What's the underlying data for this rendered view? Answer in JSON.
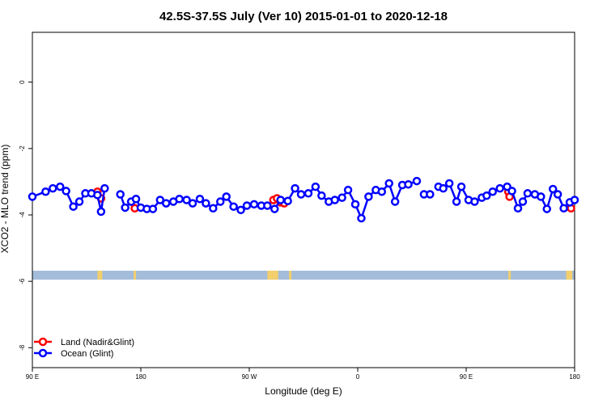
{
  "chart_data": {
    "type": "line",
    "title": "42.5S-37.5S July (Ver 10)   2015-01-01 to 2020-12-18",
    "xlabel": "Longitude (deg E)",
    "ylabel": "XCO2 - MLO trend (ppm)",
    "x_ticks": [
      {
        "value": 90,
        "label": "90 E"
      },
      {
        "value": 180,
        "label": "180"
      },
      {
        "value": 270,
        "label": "90 W"
      },
      {
        "value": 360,
        "label": "0"
      },
      {
        "value": 450,
        "label": "90 E"
      },
      {
        "value": 540,
        "label": "180"
      }
    ],
    "y_ticks": [
      0,
      -2,
      -4,
      -6,
      -8
    ],
    "xlim": [
      90,
      540
    ],
    "ylim": [
      -8.6,
      1.5
    ],
    "legend_position": "bottom-left",
    "land_mask": {
      "y_top": -5.68,
      "y_bottom": -5.95,
      "ocean_color": "#a3bcd9",
      "land_color": "#f2cf6c",
      "land_spans": [
        [
          144,
          148
        ],
        [
          174,
          176
        ],
        [
          285,
          294
        ],
        [
          303,
          305
        ],
        [
          485,
          487
        ],
        [
          533,
          538
        ]
      ]
    },
    "series": [
      {
        "name": "Land (Nadir&Glint)",
        "color": "#ff0000",
        "x": [
          144,
          147,
          175,
          290,
          293,
          296,
          299,
          485,
          486,
          537
        ],
        "y": [
          -3.3,
          -3.5,
          -3.8,
          -3.55,
          -3.5,
          -3.62,
          -3.65,
          -3.3,
          -3.45,
          -3.8
        ]
      },
      {
        "name": "Ocean (Glint)",
        "color": "#0000ff",
        "segments": [
          {
            "x": [
              90,
              101,
              107,
              113,
              118,
              124,
              129,
              134,
              139,
              144,
              147,
              150
            ],
            "y": [
              -3.45,
              -3.3,
              -3.2,
              -3.15,
              -3.28,
              -3.75,
              -3.6,
              -3.35,
              -3.35,
              -3.4,
              -3.9,
              -3.2
            ]
          },
          {
            "x": [
              163,
              167,
              172,
              176,
              180,
              185,
              190,
              196,
              201,
              207,
              212,
              218,
              223,
              229,
              234,
              240,
              246,
              251,
              257,
              263,
              268,
              274,
              280,
              285,
              291,
              296,
              302,
              308,
              313,
              319,
              325,
              330,
              336,
              341,
              347,
              352,
              358,
              363,
              369,
              375,
              380,
              386,
              391,
              397,
              402,
              409
            ],
            "y": [
              -3.38,
              -3.78,
              -3.6,
              -3.52,
              -3.78,
              -3.82,
              -3.82,
              -3.55,
              -3.65,
              -3.6,
              -3.52,
              -3.55,
              -3.65,
              -3.52,
              -3.65,
              -3.8,
              -3.6,
              -3.45,
              -3.75,
              -3.85,
              -3.72,
              -3.68,
              -3.72,
              -3.72,
              -3.82,
              -3.55,
              -3.58,
              -3.2,
              -3.38,
              -3.35,
              -3.15,
              -3.42,
              -3.6,
              -3.55,
              -3.48,
              -3.25,
              -3.68,
              -4.1,
              -3.45,
              -3.25,
              -3.3,
              -3.05,
              -3.6,
              -3.1,
              -3.08,
              -2.98
            ]
          },
          {
            "x": [
              415,
              420
            ],
            "y": [
              -3.38,
              -3.38
            ]
          },
          {
            "x": [
              427,
              431,
              436,
              442,
              446,
              452,
              457,
              463,
              467,
              472,
              478,
              484,
              488,
              493,
              497,
              501,
              507,
              512,
              517,
              522,
              526,
              531,
              536,
              540
            ],
            "y": [
              -3.15,
              -3.2,
              -3.05,
              -3.6,
              -3.15,
              -3.55,
              -3.6,
              -3.48,
              -3.42,
              -3.3,
              -3.2,
              -3.15,
              -3.28,
              -3.8,
              -3.6,
              -3.35,
              -3.38,
              -3.45,
              -3.82,
              -3.22,
              -3.38,
              -3.8,
              -3.62,
              -3.55
            ]
          }
        ]
      }
    ]
  }
}
